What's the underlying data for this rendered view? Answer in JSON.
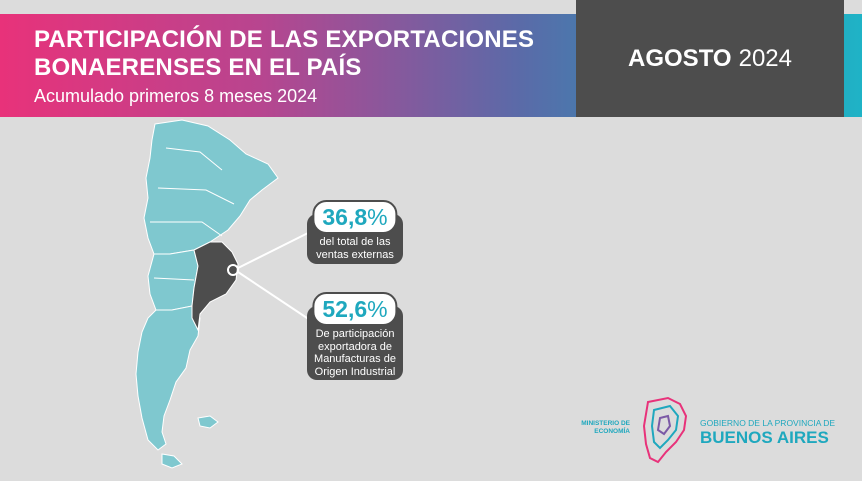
{
  "header": {
    "title_line1": "PARTICIPACIÓN DE LAS EXPORTACIONES",
    "title_line2": "BONAERENSES EN EL PAÍS",
    "subtitle": "Acumulado primeros 8 meses 2024",
    "date_month": "AGOSTO",
    "date_year": "2024"
  },
  "callouts": [
    {
      "value": "36,8",
      "unit": "%",
      "text": "del total de las ventas externas"
    },
    {
      "value": "52,6",
      "unit": "%",
      "text": "De participación exportadora de Manufacturas de Origen Industrial"
    }
  ],
  "footer": {
    "ministry": "MINISTERIO DE ECONOMÍA",
    "gov_small": "GOBIERNO DE LA PROVINCIA DE",
    "gov_big": "BUENOS AIRES"
  },
  "colors": {
    "accent_teal": "#1fa8be",
    "accent_pink": "#e8327a",
    "dark_gray": "#4d4d4d",
    "map_fill": "#7fc8cf"
  }
}
